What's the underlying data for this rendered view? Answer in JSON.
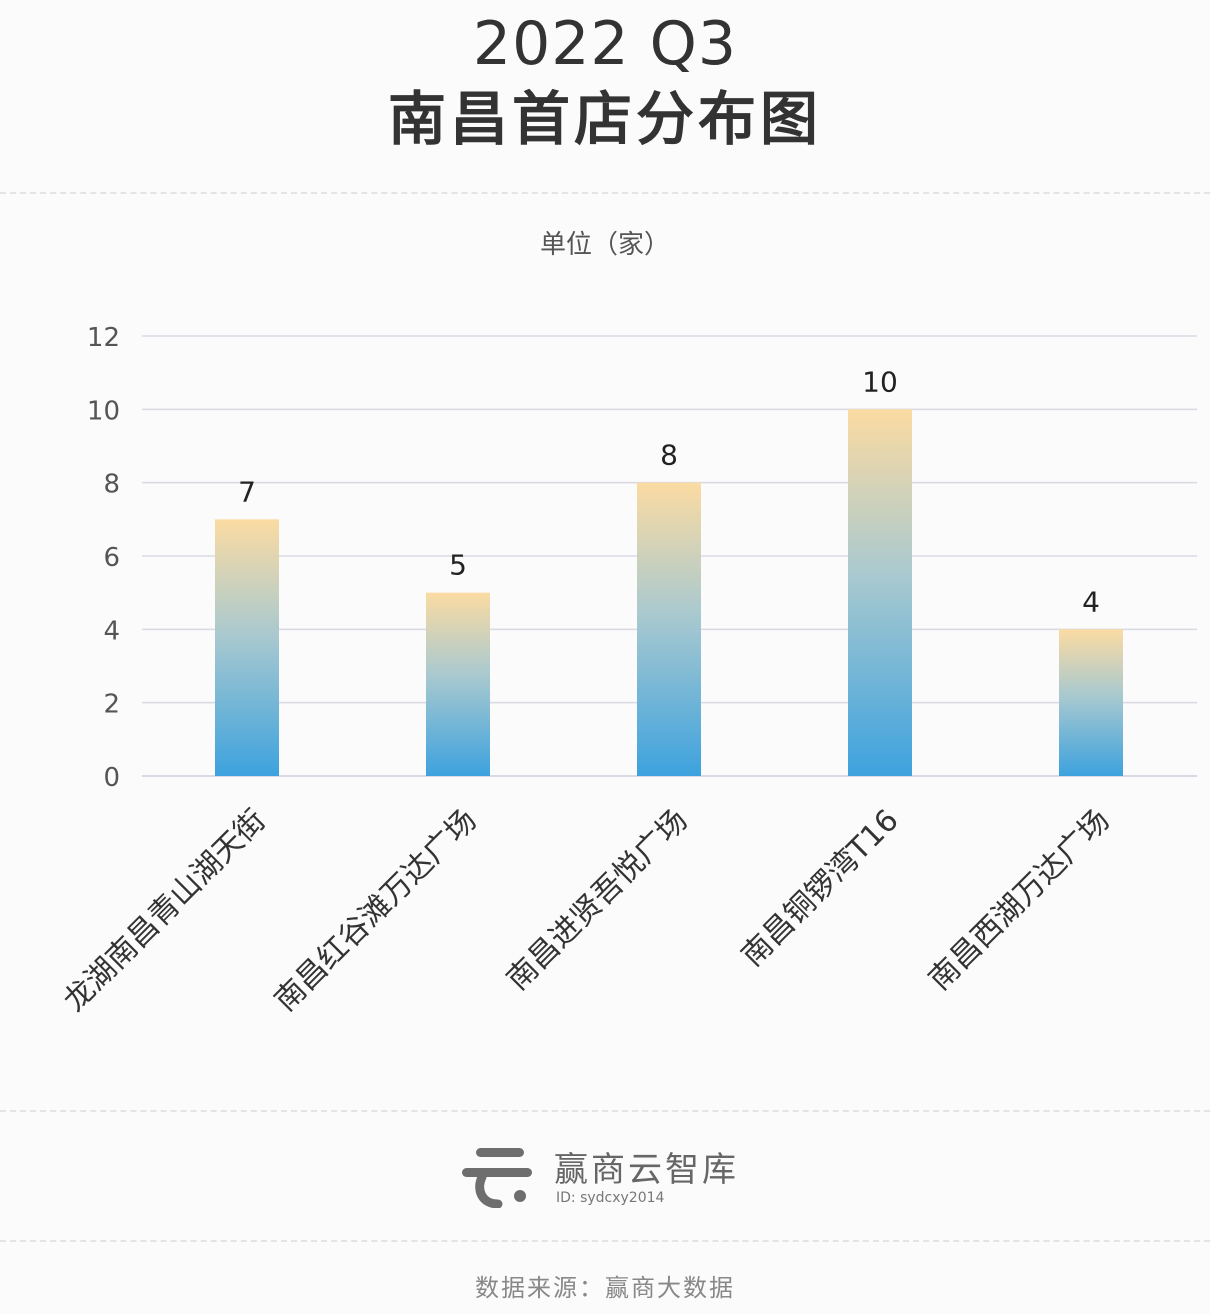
{
  "title": {
    "line1": "2022 Q3",
    "line2": "南昌首店分布图"
  },
  "unit_label": "单位（家）",
  "logo": {
    "name": "赢商云智库",
    "id": "ID: sydcxy2014",
    "icon": "winshang-logo-icon"
  },
  "source": "数据来源：赢商大数据",
  "chart_data": {
    "type": "bar",
    "categories": [
      "龙湖南昌青山湖天街",
      "南昌红谷滩万达广场",
      "南昌进贤吾悦广场",
      "南昌铜锣湾T16",
      "南昌西湖万达广场"
    ],
    "values": [
      7,
      5,
      8,
      10,
      4
    ],
    "ylim": [
      0,
      12
    ],
    "yticks": [
      0,
      2,
      4,
      6,
      8,
      10,
      12
    ],
    "grid": true,
    "data_labels": true,
    "colors": {
      "bar_top": "#fbdba2",
      "bar_bottom": "#3da2de",
      "grid": "#d9d9e4",
      "axis_text": "#555",
      "label_text": "#222"
    }
  }
}
